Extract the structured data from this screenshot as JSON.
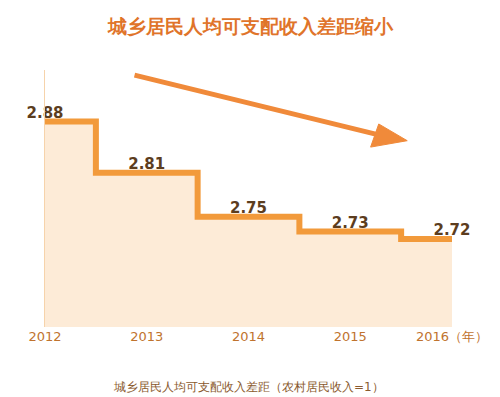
{
  "chart_data": {
    "type": "line",
    "title": "城乡居民人均可支配收入差距缩小",
    "subtitle": "城乡居民人均可支配收入差距（农村居民收入=1）",
    "categories": [
      "2012",
      "2013",
      "2014",
      "2015",
      "2016"
    ],
    "xlabel": "（年）",
    "values": [
      2.88,
      2.81,
      2.75,
      2.73,
      2.72
    ],
    "color": "#f29a3b",
    "line_style": "step",
    "ylim": [
      2.6,
      2.95
    ],
    "yticks": [],
    "data_labels": true,
    "tick_labels": "x",
    "grid": false
  }
}
